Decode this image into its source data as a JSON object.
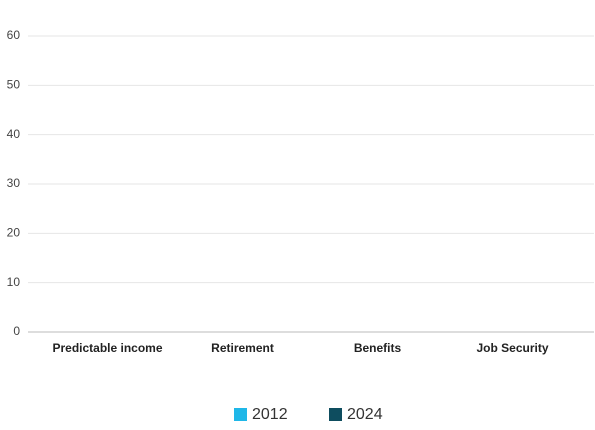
{
  "chart_data": {
    "type": "bar",
    "categories": [
      "Predictable income",
      "Retirement",
      "Benefits",
      "Job Security"
    ],
    "series": [
      {
        "name": "2012",
        "color": "#1fb7e8",
        "values": [
          null,
          null,
          null,
          null
        ]
      },
      {
        "name": "2024",
        "color": "#0e4d5f",
        "values": [
          null,
          null,
          null,
          null
        ]
      }
    ],
    "ylim": [
      0,
      60
    ],
    "yticks": [
      0,
      10,
      20,
      30,
      40,
      50,
      60
    ],
    "grid": true,
    "legend": "bottom"
  }
}
